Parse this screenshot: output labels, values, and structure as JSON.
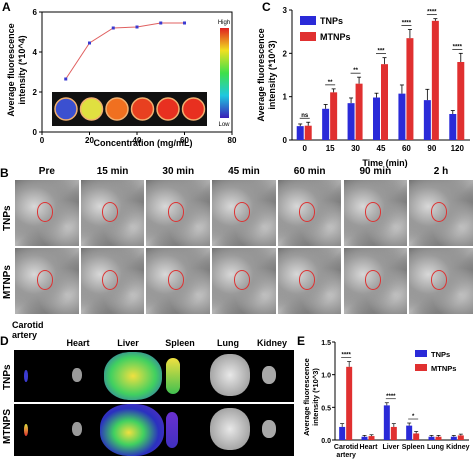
{
  "panelA": {
    "label": "A",
    "ylabel_line1": "Average fluorescence",
    "ylabel_line2": "intensity (*10^4)",
    "xlabel": "Concentration (mg/mL)",
    "colorbar_high": "High",
    "colorbar_low": "Low",
    "colors": {
      "line": "#e06060",
      "marker": "#3a3ad0"
    }
  },
  "panelB": {
    "label": "B",
    "timepoints": [
      "Pre",
      "15 min",
      "30 min",
      "45 min",
      "60 min",
      "90 min",
      "2 h"
    ],
    "rows": [
      "TNPs",
      "MTNPs"
    ]
  },
  "panelC": {
    "label": "C",
    "ylabel_line1": "Average fluorescence",
    "ylabel_line2": "intensity (*10^3)",
    "xlabel": "Time (min)",
    "legend": [
      "TNPs",
      "MTNPs"
    ],
    "colors": {
      "tnps": "#2a2ad8",
      "mtnps": "#e03030"
    },
    "sig": [
      "ns",
      "**",
      "**",
      "***",
      "****",
      "****",
      "****"
    ]
  },
  "panelD": {
    "label": "D",
    "organs": [
      "Carotid artery",
      "Heart",
      "Liver",
      "Spleen",
      "Lung",
      "Kidney"
    ],
    "rows": [
      "TNPs",
      "MTNPS"
    ]
  },
  "panelE": {
    "label": "E",
    "ylabel_line1": "Average fluorescence",
    "ylabel_line2": "intensity (*10^3)",
    "legend": [
      "TNPs",
      "MTNPs"
    ],
    "sig": [
      "****",
      "****",
      "*"
    ]
  },
  "chart_data": [
    {
      "type": "line",
      "panel": "A",
      "x": [
        10,
        20,
        30,
        40,
        50,
        60
      ],
      "y": [
        2.65,
        4.45,
        5.2,
        5.25,
        5.45,
        5.45
      ],
      "xlabel": "Concentration (mg/mL)",
      "ylabel": "Average fluorescence intensity (*10^4)",
      "xlim": [
        0,
        80
      ],
      "ylim": [
        0,
        6
      ],
      "xticks": [
        0,
        20,
        40,
        60,
        80
      ],
      "yticks": [
        0,
        2,
        4,
        6
      ]
    },
    {
      "type": "bar",
      "panel": "C",
      "categories": [
        "0",
        "15",
        "30",
        "45",
        "60",
        "90",
        "120"
      ],
      "series": [
        {
          "name": "TNPs",
          "values": [
            0.32,
            0.72,
            0.85,
            0.98,
            1.07,
            0.92,
            0.6
          ],
          "errors": [
            0.05,
            0.1,
            0.12,
            0.1,
            0.2,
            0.25,
            0.08
          ]
        },
        {
          "name": "MTNPs",
          "values": [
            0.33,
            1.1,
            1.3,
            1.75,
            2.35,
            2.75,
            1.8
          ],
          "errors": [
            0.08,
            0.08,
            0.15,
            0.15,
            0.2,
            0.05,
            0.2
          ]
        }
      ],
      "xlabel": "Time (min)",
      "ylabel": "Average fluorescence intensity (*10^3)",
      "ylim": [
        0,
        3
      ],
      "yticks": [
        0,
        1,
        2,
        3
      ]
    },
    {
      "type": "bar",
      "panel": "E",
      "categories": [
        "Carotid artery",
        "Heart",
        "Liver",
        "Spleen",
        "Lung",
        "Kidney"
      ],
      "series": [
        {
          "name": "TNPs",
          "values": [
            0.2,
            0.05,
            0.53,
            0.22,
            0.05,
            0.05
          ],
          "errors": [
            0.05,
            0.02,
            0.04,
            0.04,
            0.02,
            0.02
          ]
        },
        {
          "name": "MTNPs",
          "values": [
            1.12,
            0.06,
            0.2,
            0.1,
            0.05,
            0.07
          ],
          "errors": [
            0.08,
            0.02,
            0.05,
            0.03,
            0.02,
            0.02
          ]
        }
      ],
      "ylabel": "Average fluorescence intensity (*10^3)",
      "ylim": [
        0,
        1.5
      ],
      "yticks": [
        0.0,
        0.5,
        1.0,
        1.5
      ]
    }
  ]
}
